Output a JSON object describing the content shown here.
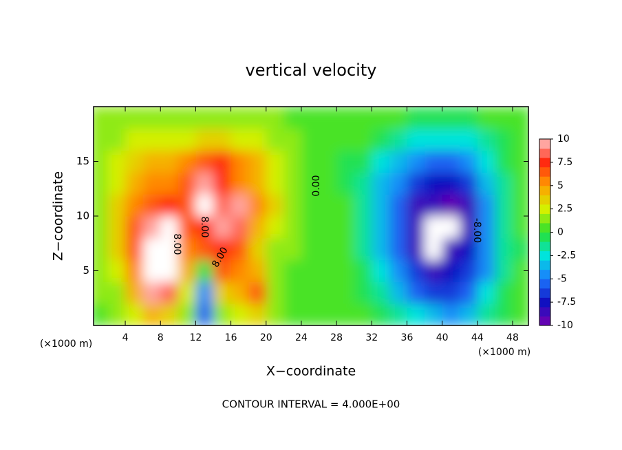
{
  "chart_data": {
    "type": "contour",
    "title": "vertical velocity",
    "x_label": "X−coordinate",
    "y_label": "Z−coordinate",
    "x_unit": "(×1000 m)",
    "y_unit": "(×1000 m)",
    "footer": "CONTOUR INTERVAL = 4.000E+00",
    "xlim": [
      0.4,
      49.8
    ],
    "ylim": [
      0,
      20
    ],
    "xticks": [
      4,
      8,
      12,
      16,
      20,
      24,
      28,
      32,
      36,
      40,
      44,
      48
    ],
    "yticks": [
      5,
      10,
      15
    ],
    "clim": [
      -10,
      10
    ],
    "cticks": [
      10,
      7.5,
      5,
      2.5,
      0,
      -2.5,
      -5,
      -7.5,
      -10
    ],
    "colors": [
      "#ffc4c4",
      "#ff2a10",
      "#ffa000",
      "#d4f000",
      "#28e030",
      "#00e4dc",
      "#1c78ff",
      "#1010c0",
      "#7800b0"
    ],
    "extreme_color": "#ffffff",
    "contour_labels": [
      "8.00",
      "8.00",
      "8.00",
      "0.00",
      "-8.00"
    ],
    "x": [
      1,
      3,
      5,
      7,
      9,
      11,
      13,
      15,
      17,
      19,
      21,
      23,
      25,
      27,
      29,
      31,
      33,
      35,
      37,
      39,
      41,
      43,
      45,
      47,
      49
    ],
    "y": [
      1,
      3,
      5,
      7,
      9,
      11,
      13,
      15,
      17,
      19
    ],
    "z": [
      [
        0.5,
        1,
        2,
        4,
        3,
        1,
        -6,
        1,
        2,
        3,
        1,
        0.5,
        0.5,
        0.5,
        0,
        0,
        -1,
        -2,
        -3,
        -4,
        -4.5,
        -3.5,
        -2,
        -0.5,
        0.5
      ],
      [
        1,
        1.5,
        4,
        9,
        8,
        2,
        -5,
        3,
        4,
        6,
        1.5,
        0.5,
        0.5,
        0,
        0,
        -0.5,
        -2,
        -4,
        -6,
        -7,
        -7,
        -6,
        -3,
        -1,
        0
      ],
      [
        1,
        2,
        5,
        10,
        10,
        4,
        -1,
        6,
        5,
        4,
        1,
        0.5,
        0.5,
        0,
        0,
        -1,
        -3,
        -4.5,
        -7,
        -8.5,
        -8,
        -7,
        -4.5,
        -2,
        0
      ],
      [
        1,
        3,
        6,
        10,
        10,
        5,
        6,
        7,
        6,
        3,
        1.5,
        1,
        0.5,
        0,
        0,
        -1.5,
        -3.5,
        -5.5,
        -8.5,
        -10,
        -9,
        -8,
        -5,
        -2,
        -1
      ],
      [
        1,
        3,
        6,
        9,
        10,
        6,
        7,
        9,
        8,
        4,
        2,
        1,
        0.5,
        0,
        0.5,
        -2,
        -4,
        -6,
        -9,
        -10,
        -10,
        -9,
        -5,
        -2,
        0
      ],
      [
        1,
        3,
        5,
        6,
        7,
        6,
        10,
        8,
        9,
        5,
        3,
        1.5,
        0.5,
        0,
        0,
        -2,
        -4,
        -6,
        -8.5,
        -9,
        -9.5,
        -8.5,
        -5,
        -2,
        0
      ],
      [
        1,
        2.5,
        4,
        5,
        5,
        6,
        9,
        7,
        5,
        4,
        2.5,
        1.5,
        0.5,
        0,
        -0.5,
        -2,
        -3.5,
        -5,
        -6.5,
        -7.5,
        -7.5,
        -6.5,
        -4,
        -1.5,
        0
      ],
      [
        1,
        2,
        3,
        4,
        4.5,
        5,
        6,
        7,
        5,
        4,
        2.5,
        1.5,
        0.5,
        0,
        -0.5,
        -1,
        -2.5,
        -4,
        -5,
        -5.5,
        -5.5,
        -4.5,
        -3,
        -1,
        0
      ],
      [
        1,
        1.5,
        2,
        2,
        2.5,
        2.5,
        3,
        3,
        2.5,
        2,
        1.5,
        1,
        0.5,
        0,
        0,
        0,
        -1,
        -2,
        -2.5,
        -3,
        -3,
        -2.5,
        -1.5,
        -0.5,
        0
      ],
      [
        1,
        1,
        1,
        1,
        1,
        1,
        1,
        1,
        1,
        1,
        1,
        0.5,
        0.5,
        0.5,
        0,
        0,
        0,
        0,
        -0.5,
        -0.5,
        -0.5,
        -0.5,
        0,
        0,
        0
      ]
    ]
  }
}
